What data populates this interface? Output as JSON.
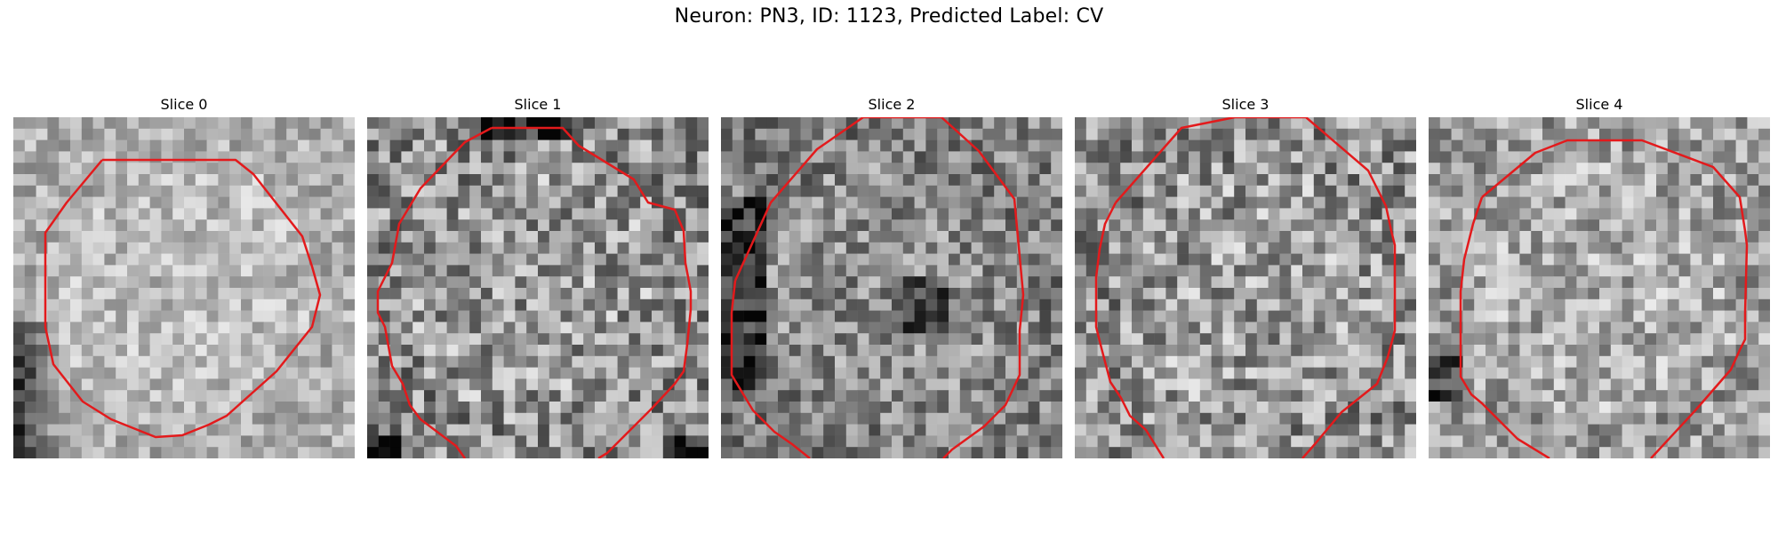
{
  "figure": {
    "title": "Neuron: PN3, ID: 1123, Predicted Label: CV"
  },
  "panels": [
    {
      "title": "Slice 0"
    },
    {
      "title": "Slice 1"
    },
    {
      "title": "Slice 2"
    },
    {
      "title": "Slice 3"
    },
    {
      "title": "Slice 4"
    }
  ],
  "style": {
    "contour_color": "#e31a1c",
    "colormap": "gray"
  }
}
